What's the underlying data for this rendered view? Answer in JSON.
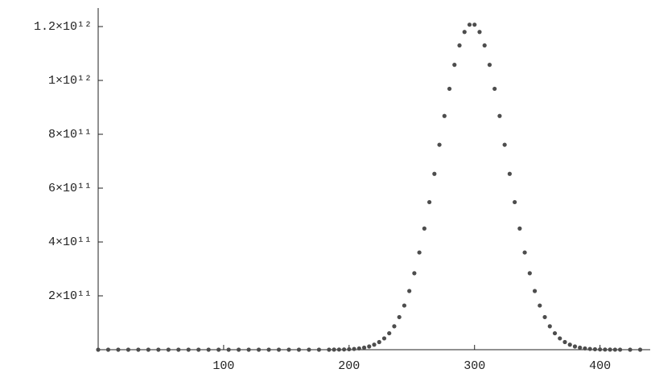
{
  "chart_data": {
    "type": "scatter",
    "color": "#4d4d4d",
    "x": [
      0,
      8,
      16,
      24,
      32,
      40,
      48,
      56,
      64,
      72,
      80,
      88,
      96,
      104,
      112,
      120,
      128,
      136,
      144,
      152,
      160,
      168,
      176,
      184,
      188,
      192,
      196,
      200,
      204,
      208,
      212,
      216,
      220,
      224,
      228,
      232,
      236,
      240,
      244,
      248,
      252,
      256,
      260,
      264,
      268,
      272,
      276,
      280,
      284,
      288,
      292,
      296,
      300,
      304,
      308,
      312,
      316,
      320,
      324,
      328,
      332,
      336,
      340,
      344,
      348,
      352,
      356,
      360,
      364,
      368,
      372,
      376,
      380,
      384,
      388,
      392,
      396,
      400,
      404,
      408,
      412,
      416,
      424,
      432
    ],
    "values": [
      0,
      0,
      0,
      0,
      0,
      0,
      0,
      0,
      0,
      0,
      0,
      0,
      0,
      0,
      0,
      0,
      0,
      0,
      0,
      0,
      0,
      0,
      0,
      0,
      300000000.0,
      540000000.0,
      960000000.0,
      1670000000.0,
      2800000000.0,
      4700000000.0,
      7600000000.0,
      12000000000.0,
      18600000000.0,
      28300000000.0,
      42000000000.0,
      61000000000.0,
      87000000000.0,
      121000000000.0,
      164000000000.0,
      218000000000.0,
      284000000000.0,
      361000000000.0,
      450000000000.0,
      548000000000.0,
      653000000000.0,
      761000000000.0,
      868000000000.0,
      969000000000.0,
      1058000000000.0,
      1130000000000.0,
      1180000000000.0,
      1207000000000.0,
      1207000000000.0,
      1180000000000.0,
      1130000000000.0,
      1058000000000.0,
      969000000000.0,
      868000000000.0,
      761000000000.0,
      653000000000.0,
      548000000000.0,
      450000000000.0,
      361000000000.0,
      284000000000.0,
      218000000000.0,
      164000000000.0,
      121000000000.0,
      87000000000.0,
      61000000000.0,
      42000000000.0,
      28300000000.0,
      18600000000.0,
      12000000000.0,
      7600000000.0,
      4700000000.0,
      2800000000.0,
      1670000000.0,
      960000000.0,
      540000000.0,
      300000000.0,
      160000000.0,
      80000000.0,
      40000000.0,
      20000000.0
    ],
    "xlim": [
      0,
      440
    ],
    "xticks": [
      100,
      200,
      300,
      400
    ],
    "ylim": [
      0,
      1230000000000.0
    ],
    "yticks": [
      {
        "value": 200000000000.0,
        "label": "2×10¹¹"
      },
      {
        "value": 400000000000.0,
        "label": "4×10¹¹"
      },
      {
        "value": 600000000000.0,
        "label": "6×10¹¹"
      },
      {
        "value": 800000000000.0,
        "label": "8×10¹¹"
      },
      {
        "value": 1000000000000.0,
        "label": "1×10¹²"
      },
      {
        "value": 1200000000000.0,
        "label": "1.2×10¹²"
      }
    ]
  }
}
